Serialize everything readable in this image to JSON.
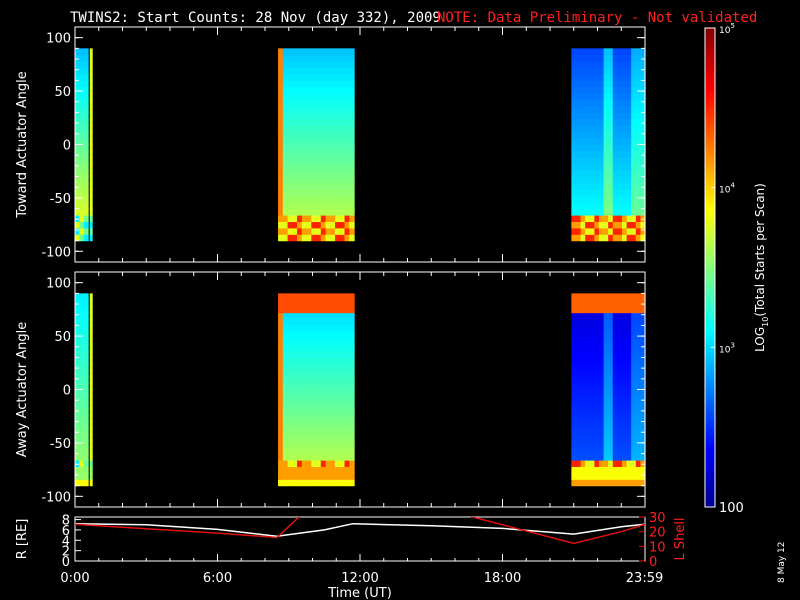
{
  "header": {
    "title": "TWINS2: Start Counts: 28 Nov (day 332), 2009",
    "note": "NOTE: Data Preliminary - Not validated"
  },
  "side_date": "8 May 12",
  "colors": {
    "background": "#000000",
    "axis": "#ffffff",
    "note": "#ff2020",
    "r_line": "#ffffff",
    "lshell_line": "#e01010"
  },
  "chart_data": [
    {
      "type": "heatmap",
      "name": "toward-panel",
      "ylabel": "Toward Actuator Angle",
      "ylim": [
        -110,
        110
      ],
      "yticks": [
        -100,
        -50,
        0,
        50,
        100
      ],
      "xlim_hours": [
        0,
        24
      ],
      "data_segments_hours": [
        [
          0.0,
          0.55
        ],
        [
          0.62,
          0.72
        ],
        [
          8.55,
          11.75
        ],
        [
          20.9,
          24.0
        ]
      ],
      "angle_range": [
        -90,
        90
      ]
    },
    {
      "type": "heatmap",
      "name": "away-panel",
      "ylabel": "Away Actuator Angle",
      "ylim": [
        -110,
        110
      ],
      "yticks": [
        -100,
        -50,
        0,
        50,
        100
      ],
      "xlim_hours": [
        0,
        24
      ],
      "data_segments_hours": [
        [
          0.0,
          0.55
        ],
        [
          0.62,
          0.72
        ],
        [
          8.55,
          11.75
        ],
        [
          20.9,
          24.0
        ]
      ],
      "angle_range": [
        -90,
        90
      ]
    },
    {
      "type": "line",
      "name": "ephemeris-panel",
      "ylabel_left": "R [RE]",
      "ylabel_right": "L Shell",
      "xlabel": "Time (UT)",
      "x_ticks": [
        "0:00",
        "6:00",
        "12:00",
        "18:00",
        "23:59"
      ],
      "x_tick_hours": [
        0,
        6,
        12,
        18,
        23.98
      ],
      "left_ylim": [
        0,
        8.5
      ],
      "left_yticks": [
        0,
        2,
        4,
        6,
        8
      ],
      "right_ylim": [
        0,
        30
      ],
      "right_yticks": [
        0,
        10,
        20,
        30
      ],
      "series": [
        {
          "name": "R",
          "axis": "left",
          "x": [
            0,
            3,
            6,
            8.5,
            10.5,
            11.7,
            15,
            18,
            21,
            23,
            24
          ],
          "y": [
            7.2,
            7.0,
            6.1,
            4.8,
            6.0,
            7.2,
            6.8,
            6.3,
            5.2,
            6.6,
            7.1
          ]
        },
        {
          "name": "L Shell",
          "axis": "right",
          "x": [
            0,
            3,
            6,
            8.5,
            9.5,
            16.5,
            21,
            23,
            24
          ],
          "y": [
            25,
            22,
            19,
            16,
            31,
            31,
            12,
            20,
            25
          ]
        }
      ]
    }
  ],
  "colorbar": {
    "label": "LOG",
    "label_sub": "10",
    "label_rest": "(Total Starts per Scan)",
    "ticks": [
      {
        "value": 100,
        "base": "100",
        "exp": ""
      },
      {
        "value": 1000,
        "base": "10",
        "exp": "3"
      },
      {
        "value": 10000,
        "base": "10",
        "exp": "4"
      },
      {
        "value": 100000,
        "base": "10",
        "exp": "5"
      }
    ],
    "range": [
      100,
      100000
    ]
  }
}
